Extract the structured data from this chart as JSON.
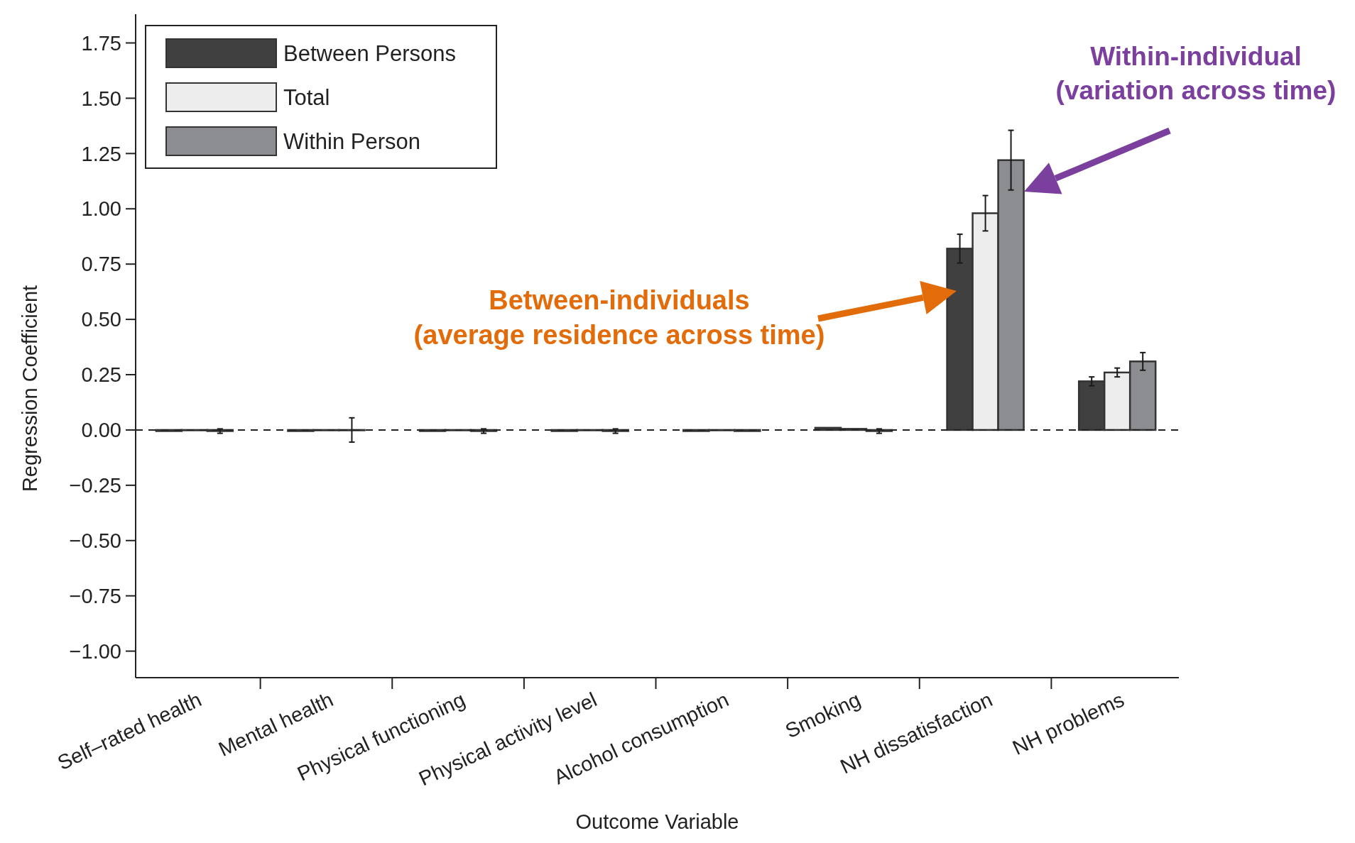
{
  "chart_data": {
    "type": "bar",
    "xlabel": "Outcome Variable",
    "ylabel": "Regression Coefficient",
    "categories": [
      "Self–rated health",
      "Mental health",
      "Physical functioning",
      "Physical activity level",
      "Alcohol consumption",
      "Smoking",
      "NH dissatisfaction",
      "NH problems"
    ],
    "series": [
      {
        "name": "Between Persons",
        "color": "#404040",
        "values": [
          -0.005,
          -0.005,
          -0.005,
          -0.005,
          -0.005,
          0.01,
          0.82,
          0.22
        ],
        "errors": [
          null,
          null,
          null,
          null,
          null,
          null,
          0.065,
          0.02
        ]
      },
      {
        "name": "Total",
        "color": "#ededed",
        "values": [
          0,
          0,
          0,
          0,
          0,
          0.005,
          0.98,
          0.26
        ],
        "errors": [
          null,
          null,
          null,
          null,
          null,
          null,
          0.08,
          0.02
        ]
      },
      {
        "name": "Within Person",
        "color": "#8c8d91",
        "values": [
          -0.005,
          0,
          -0.005,
          -0.005,
          -0.005,
          -0.005,
          1.22,
          0.31
        ],
        "errors": [
          0.01,
          0.055,
          0.01,
          0.01,
          null,
          0.01,
          0.135,
          0.04
        ]
      }
    ],
    "ylim": [
      -1.12,
      1.88
    ],
    "yticks": [
      {
        "value": -1,
        "label": "−1.00"
      },
      {
        "value": -0.75,
        "label": "−0.75"
      },
      {
        "value": -0.5,
        "label": "−0.50"
      },
      {
        "value": -0.25,
        "label": "−0.25"
      },
      {
        "value": 0,
        "label": "0.00"
      },
      0.25,
      {
        "value": 0.5,
        "label": "0.50"
      },
      0.75,
      {
        "value": 1,
        "label": "1.00"
      },
      1.25,
      {
        "value": 1.5,
        "label": "1.50"
      },
      1.75
    ],
    "ref_lines": [
      {
        "axis": "y",
        "value": 0,
        "line_style": "dashed",
        "color": "#222222"
      }
    ],
    "annotations": [
      "Between-individuals\n(average residence across time)",
      "Within-individual\n(variation across time)"
    ],
    "legend": "top left",
    "grid": false
  }
}
